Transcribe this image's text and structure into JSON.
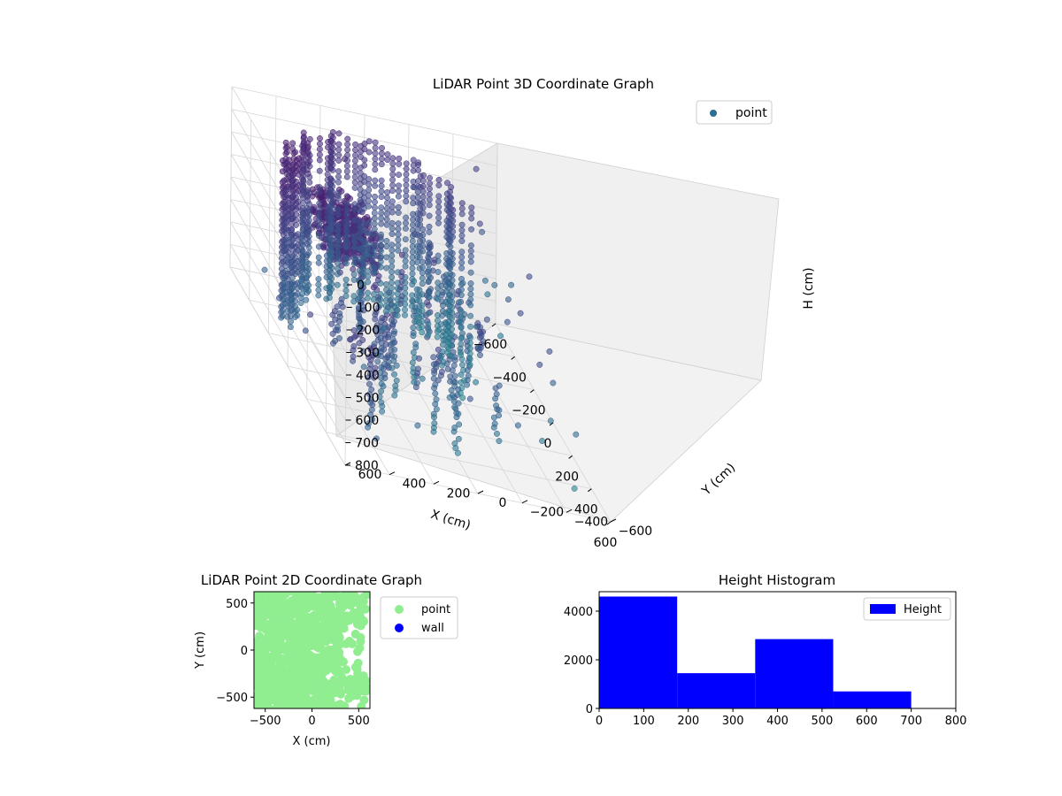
{
  "chart_data": [
    {
      "type": "scatter3d",
      "title": "LiDAR Point 3D Coordinate Graph",
      "xlabel": "X (cm)",
      "ylabel": "Y (cm)",
      "zlabel": "H (cm)",
      "xlim": [
        -600,
        600
      ],
      "ylim": [
        -600,
        600
      ],
      "zlim": [
        0,
        800
      ],
      "x_ticks": [
        "−600",
        "−400",
        "−200",
        "0",
        "200",
        "400",
        "600"
      ],
      "y_ticks": [
        "−600",
        "−400",
        "−200",
        "0",
        "200",
        "400",
        "600"
      ],
      "z_ticks": [
        "0",
        "100",
        "200",
        "300",
        "400",
        "500",
        "600",
        "700",
        "800"
      ],
      "legend": [
        "point"
      ],
      "legend_position": "top-right",
      "colormap": "viridis",
      "grid": true
    },
    {
      "type": "scatter",
      "title": "LiDAR Point 2D Coordinate Graph",
      "xlabel": "X (cm)",
      "ylabel": "Y (cm)",
      "xlim": [
        -620,
        620
      ],
      "ylim": [
        -620,
        620
      ],
      "x_ticks": [
        "−500",
        "0",
        "500"
      ],
      "y_ticks": [
        "−500",
        "0",
        "500"
      ],
      "series": [
        {
          "name": "point",
          "color": "#90ee90"
        },
        {
          "name": "wall",
          "color": "#0000ff"
        }
      ],
      "legend_position": "outside-right"
    },
    {
      "type": "histogram",
      "title": "Height Histogram",
      "bins": [
        0,
        175,
        350,
        525,
        700
      ],
      "counts": [
        4600,
        1450,
        2850,
        700
      ],
      "xlim": [
        0,
        800
      ],
      "ylim": [
        0,
        4800
      ],
      "x_ticks": [
        "0",
        "100",
        "200",
        "300",
        "400",
        "500",
        "600",
        "700",
        "800"
      ],
      "y_ticks": [
        "0",
        "2000",
        "4000"
      ],
      "series": [
        {
          "name": "Height",
          "color": "#0000ff"
        }
      ],
      "legend_position": "top-right"
    }
  ]
}
